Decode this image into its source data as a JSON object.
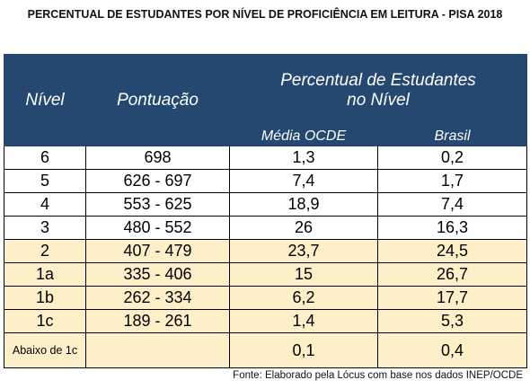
{
  "header": {
    "title": "PERCENTUAL DE ESTUDANTES POR NÍVEL DE PROFICIÊNCIA EM LEITURA - PISA 2018"
  },
  "table": {
    "columns": [
      "Nível",
      "Pontuação",
      "Percentual de Estudantes no Nível"
    ],
    "subcolumns": [
      "Média OCDE",
      "Brasil"
    ],
    "rows": [
      [
        "6",
        "698",
        "1,3",
        "0,2"
      ],
      [
        "5",
        "626 - 697",
        "7,4",
        "1,7"
      ],
      [
        "4",
        "553 - 625",
        "18,9",
        "7,4"
      ],
      [
        "3",
        "480 - 552",
        "26",
        "16,3"
      ],
      [
        "2",
        "407 - 479",
        "23,7",
        "24,5"
      ],
      [
        "1a",
        "335 - 406",
        "15",
        "26,7"
      ],
      [
        "1b",
        "262 - 334",
        "6,2",
        "17,7"
      ],
      [
        "1c",
        "189 - 261",
        "1,4",
        "5,3"
      ],
      [
        "Abaixo de 1c",
        null,
        "0,1",
        "0,4"
      ]
    ]
  },
  "footer": {
    "source": "Fonte: Elaborado pela Lócus com base nos dados INEP/OCDE"
  }
}
